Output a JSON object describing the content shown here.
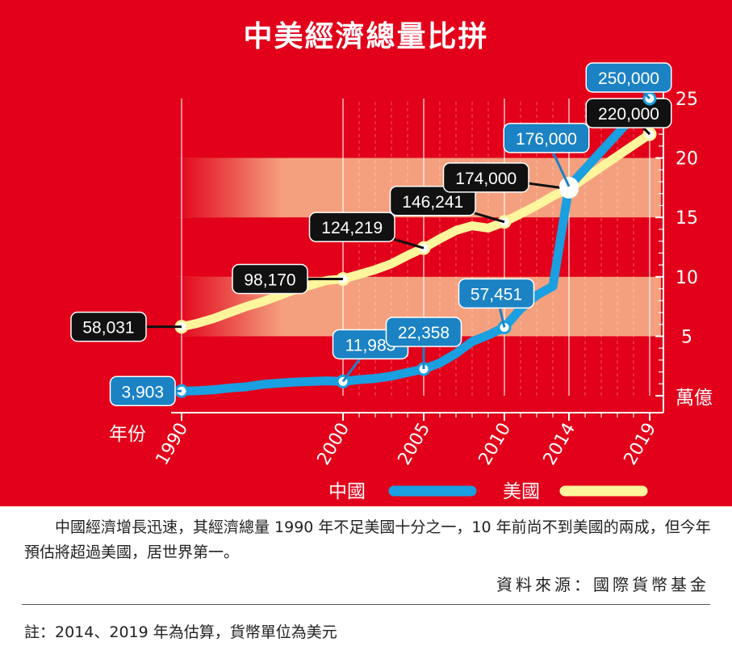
{
  "title": "中美經濟總量比拼",
  "chart_data": {
    "type": "line",
    "x_label": "年份",
    "y_unit": "萬億",
    "x_ticks": [
      1990,
      2000,
      2005,
      2010,
      2014,
      2019
    ],
    "x_range": [
      1990,
      2019
    ],
    "y_range": [
      0,
      25
    ],
    "y_ticks": [
      5,
      10,
      15,
      20,
      25
    ],
    "series": [
      {
        "name": "中國",
        "color": "#1a9fe0",
        "x": [
          1990,
          1991,
          1992,
          1993,
          1994,
          1995,
          1996,
          1997,
          1998,
          1999,
          2000,
          2001,
          2002,
          2003,
          2004,
          2005,
          2006,
          2007,
          2008,
          2009,
          2010,
          2011,
          2012,
          2013,
          2014,
          2019
        ],
        "y": [
          0.39,
          0.42,
          0.5,
          0.65,
          0.75,
          0.95,
          1.05,
          1.15,
          1.2,
          1.25,
          1.2,
          1.35,
          1.45,
          1.65,
          1.95,
          2.24,
          2.75,
          3.55,
          4.55,
          5.1,
          5.75,
          7.3,
          8.45,
          9.2,
          17.6,
          25.0
        ],
        "labels": [
          {
            "x": 1990,
            "y": 0.39,
            "text": "3,903"
          },
          {
            "x": 2000,
            "y": 1.2,
            "text": "11,985"
          },
          {
            "x": 2005,
            "y": 2.24,
            "text": "22,358"
          },
          {
            "x": 2010,
            "y": 5.75,
            "text": "57,451"
          },
          {
            "x": 2014,
            "y": 17.6,
            "text": "176,000"
          },
          {
            "x": 2019,
            "y": 25.0,
            "text": "250,000"
          }
        ]
      },
      {
        "name": "美國",
        "color": "#fff59d",
        "x": [
          1990,
          1991,
          1992,
          1993,
          1994,
          1995,
          1996,
          1997,
          1998,
          1999,
          2000,
          2001,
          2002,
          2003,
          2004,
          2005,
          2006,
          2007,
          2008,
          2009,
          2010,
          2011,
          2012,
          2013,
          2014,
          2019
        ],
        "y": [
          5.8,
          6.1,
          6.5,
          7.0,
          7.5,
          7.9,
          8.4,
          8.9,
          9.3,
          9.7,
          9.82,
          10.2,
          10.6,
          11.1,
          11.8,
          12.42,
          13.2,
          13.9,
          14.3,
          14.1,
          14.62,
          15.3,
          16.0,
          16.8,
          17.4,
          22.0
        ],
        "labels": [
          {
            "x": 1990,
            "y": 5.8,
            "text": "58,031"
          },
          {
            "x": 2000,
            "y": 9.82,
            "text": "98,170"
          },
          {
            "x": 2005,
            "y": 12.42,
            "text": "124,219"
          },
          {
            "x": 2010,
            "y": 14.62,
            "text": "146,241"
          },
          {
            "x": 2014,
            "y": 17.4,
            "text": "174,000"
          },
          {
            "x": 2019,
            "y": 22.0,
            "text": "220,000"
          }
        ]
      }
    ],
    "bands": [
      {
        "from": 5,
        "to": 10,
        "color": "#f4a07e"
      },
      {
        "from": 15,
        "to": 20,
        "color": "#f4a07e"
      }
    ],
    "legend": "bottom-right"
  },
  "caption": "中國經濟增長迅速，其經濟總量 1990 年不足美國十分之一，10 年前尚不到美國的兩成，但今年預估將超過美國，居世界第一。",
  "source": "資料來源：國際貨幣基金",
  "note": "註：2014、2019 年為估算，貨幣單位為美元"
}
